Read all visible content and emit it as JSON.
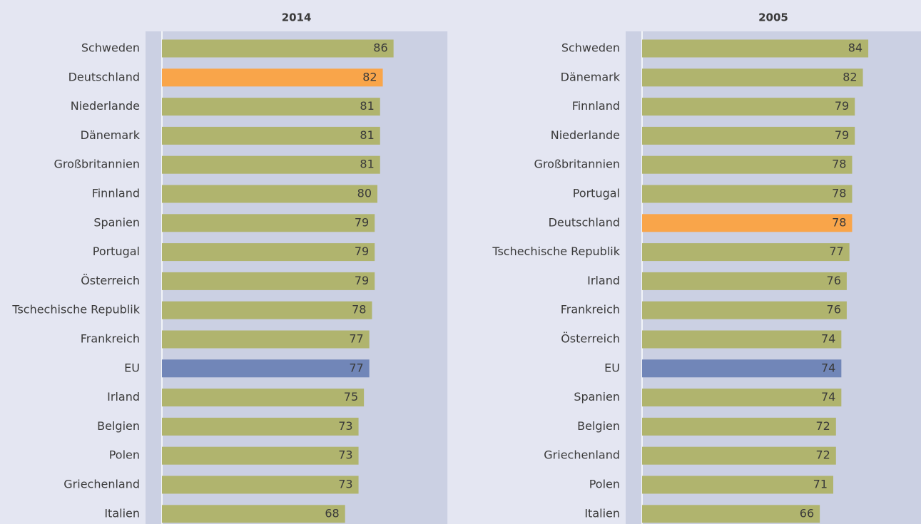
{
  "chart_data": [
    {
      "type": "bar",
      "orientation": "horizontal",
      "title": "2014",
      "categories": [
        "Schweden",
        "Deutschland",
        "Niederlande",
        "Dänemark",
        "Großbritannien",
        "Finnland",
        "Spanien",
        "Portugal",
        "Österreich",
        "Tschechische Republik",
        "Frankreich",
        "EU",
        "Irland",
        "Belgien",
        "Polen",
        "Griechenland",
        "Italien"
      ],
      "values": [
        86,
        82,
        81,
        81,
        81,
        80,
        79,
        79,
        79,
        78,
        77,
        77,
        75,
        73,
        73,
        73,
        68
      ],
      "colors": [
        "#b0b46e",
        "#f9a54a",
        "#b0b46e",
        "#b0b46e",
        "#b0b46e",
        "#b0b46e",
        "#b0b46e",
        "#b0b46e",
        "#b0b46e",
        "#b0b46e",
        "#b0b46e",
        "#7186b8",
        "#b0b46e",
        "#b0b46e",
        "#b0b46e",
        "#b0b46e",
        "#b0b46e"
      ],
      "xlim": [
        0,
        106
      ]
    },
    {
      "type": "bar",
      "orientation": "horizontal",
      "title": "2005",
      "categories": [
        "Schweden",
        "Dänemark",
        "Finnland",
        "Niederlande",
        "Großbritannien",
        "Portugal",
        "Deutschland",
        "Tschechische Republik",
        "Irland",
        "Frankreich",
        "Österreich",
        "EU",
        "Spanien",
        "Belgien",
        "Griechenland",
        "Polen",
        "Italien"
      ],
      "values": [
        84,
        82,
        79,
        79,
        78,
        78,
        78,
        77,
        76,
        76,
        74,
        74,
        74,
        72,
        72,
        71,
        66
      ],
      "colors": [
        "#b0b46e",
        "#b0b46e",
        "#b0b46e",
        "#b0b46e",
        "#b0b46e",
        "#b0b46e",
        "#f9a54a",
        "#b0b46e",
        "#b0b46e",
        "#b0b46e",
        "#b0b46e",
        "#7186b8",
        "#b0b46e",
        "#b0b46e",
        "#b0b46e",
        "#b0b46e",
        "#b0b46e"
      ],
      "xlim": [
        0,
        106
      ]
    }
  ]
}
